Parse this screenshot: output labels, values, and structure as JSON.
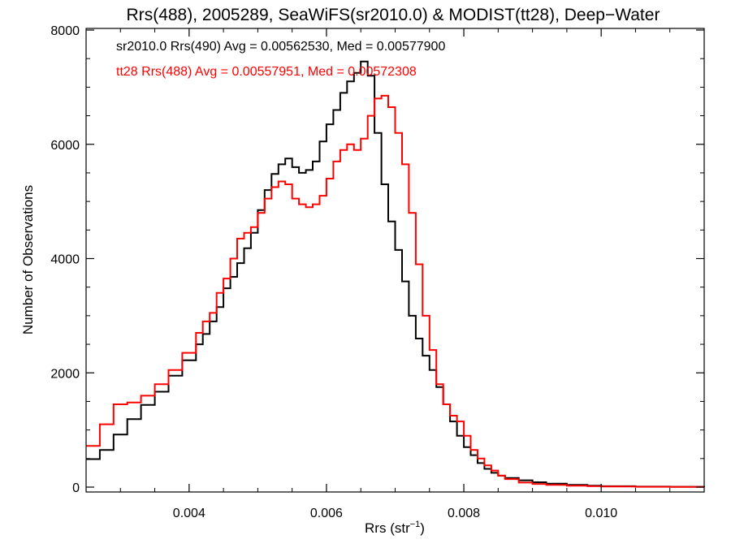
{
  "chart_data": {
    "type": "line",
    "step": true,
    "title": "Rrs(488), 2005289, SeaWiFS(sr2010.0) & MODIST(tt28), Deep−Water",
    "xlabel_main": "Rrs (str",
    "xlabel_sup": "−1",
    "xlabel_close": ")",
    "ylabel": "Number of Observations",
    "xlim": [
      0.0025,
      0.0115
    ],
    "ylim": [
      0,
      8000
    ],
    "xticks": [
      0.004,
      0.006,
      0.008,
      0.01
    ],
    "xtick_labels": [
      "0.004",
      "0.006",
      "0.008",
      "0.010"
    ],
    "yticks": [
      0,
      2000,
      4000,
      6000,
      8000
    ],
    "ytick_labels": [
      "0",
      "2000",
      "4000",
      "6000",
      "8000"
    ],
    "legend": [
      {
        "text": "sr2010.0 Rrs(490) Avg = 0.00562530, Med = 0.00577900",
        "color": "#000000"
      },
      {
        "text": "tt28 Rrs(488) Avg = 0.00557951, Med = 0.00572308",
        "color": "#ff0000"
      }
    ],
    "legend_placement": "top-left",
    "series": [
      {
        "color": "#000000",
        "points": [
          [
            0.0025,
            490
          ],
          [
            0.0027,
            650
          ],
          [
            0.0029,
            920
          ],
          [
            0.0031,
            1190
          ],
          [
            0.0033,
            1440
          ],
          [
            0.0035,
            1670
          ],
          [
            0.0037,
            1950
          ],
          [
            0.0039,
            2220
          ],
          [
            0.0041,
            2500
          ],
          [
            0.0042,
            2680
          ],
          [
            0.0043,
            2900
          ],
          [
            0.0044,
            3150
          ],
          [
            0.0045,
            3480
          ],
          [
            0.0046,
            3680
          ],
          [
            0.0047,
            3920
          ],
          [
            0.0048,
            4180
          ],
          [
            0.0049,
            4450
          ],
          [
            0.005,
            4850
          ],
          [
            0.0051,
            5200
          ],
          [
            0.0052,
            5480
          ],
          [
            0.0053,
            5650
          ],
          [
            0.0054,
            5750
          ],
          [
            0.0055,
            5600
          ],
          [
            0.0056,
            5500
          ],
          [
            0.0057,
            5550
          ],
          [
            0.0058,
            5700
          ],
          [
            0.0059,
            6050
          ],
          [
            0.006,
            6350
          ],
          [
            0.0061,
            6600
          ],
          [
            0.0062,
            6900
          ],
          [
            0.0063,
            7100
          ],
          [
            0.0064,
            7250
          ],
          [
            0.0065,
            7450
          ],
          [
            0.0066,
            7200
          ],
          [
            0.0067,
            6200
          ],
          [
            0.0068,
            5300
          ],
          [
            0.0069,
            4650
          ],
          [
            0.007,
            4150
          ],
          [
            0.0071,
            3600
          ],
          [
            0.0072,
            3000
          ],
          [
            0.0073,
            2600
          ],
          [
            0.0074,
            2300
          ],
          [
            0.0075,
            2050
          ],
          [
            0.0076,
            1750
          ],
          [
            0.0077,
            1450
          ],
          [
            0.0078,
            1150
          ],
          [
            0.0079,
            900
          ],
          [
            0.008,
            700
          ],
          [
            0.0081,
            560
          ],
          [
            0.0082,
            420
          ],
          [
            0.0083,
            320
          ],
          [
            0.0084,
            250
          ],
          [
            0.0085,
            200
          ],
          [
            0.0086,
            160
          ],
          [
            0.0088,
            120
          ],
          [
            0.009,
            85
          ],
          [
            0.0092,
            60
          ],
          [
            0.0095,
            40
          ],
          [
            0.0098,
            25
          ],
          [
            0.01,
            15
          ],
          [
            0.0105,
            8
          ],
          [
            0.011,
            5
          ],
          [
            0.0115,
            3
          ]
        ]
      },
      {
        "color": "#ff0000",
        "points": [
          [
            0.0025,
            720
          ],
          [
            0.0027,
            1100
          ],
          [
            0.0029,
            1450
          ],
          [
            0.0031,
            1480
          ],
          [
            0.0033,
            1600
          ],
          [
            0.0035,
            1800
          ],
          [
            0.0037,
            2050
          ],
          [
            0.0039,
            2350
          ],
          [
            0.0041,
            2700
          ],
          [
            0.0042,
            2900
          ],
          [
            0.0043,
            3050
          ],
          [
            0.0044,
            3400
          ],
          [
            0.0045,
            3650
          ],
          [
            0.0046,
            4000
          ],
          [
            0.0047,
            4350
          ],
          [
            0.0048,
            4450
          ],
          [
            0.0049,
            4550
          ],
          [
            0.005,
            4800
          ],
          [
            0.0051,
            5050
          ],
          [
            0.0052,
            5250
          ],
          [
            0.0053,
            5350
          ],
          [
            0.0054,
            5300
          ],
          [
            0.0055,
            5050
          ],
          [
            0.0056,
            4950
          ],
          [
            0.0057,
            4900
          ],
          [
            0.0058,
            4950
          ],
          [
            0.0059,
            5100
          ],
          [
            0.006,
            5400
          ],
          [
            0.0061,
            5700
          ],
          [
            0.0062,
            5900
          ],
          [
            0.0063,
            6000
          ],
          [
            0.0064,
            5900
          ],
          [
            0.0065,
            6100
          ],
          [
            0.0066,
            6500
          ],
          [
            0.0067,
            6800
          ],
          [
            0.0068,
            6850
          ],
          [
            0.0069,
            6650
          ],
          [
            0.007,
            6200
          ],
          [
            0.0071,
            5650
          ],
          [
            0.0072,
            4800
          ],
          [
            0.0073,
            3900
          ],
          [
            0.0074,
            3000
          ],
          [
            0.0075,
            2400
          ],
          [
            0.0076,
            1800
          ],
          [
            0.0077,
            1450
          ],
          [
            0.0078,
            1250
          ],
          [
            0.0079,
            1150
          ],
          [
            0.008,
            900
          ],
          [
            0.0081,
            650
          ],
          [
            0.0082,
            500
          ],
          [
            0.0083,
            380
          ],
          [
            0.0084,
            290
          ],
          [
            0.0085,
            200
          ],
          [
            0.0086,
            140
          ],
          [
            0.0088,
            80
          ],
          [
            0.009,
            55
          ],
          [
            0.0092,
            40
          ],
          [
            0.0095,
            25
          ],
          [
            0.0098,
            15
          ],
          [
            0.01,
            10
          ],
          [
            0.0105,
            5
          ],
          [
            0.011,
            3
          ],
          [
            0.0115,
            2
          ]
        ]
      }
    ]
  }
}
